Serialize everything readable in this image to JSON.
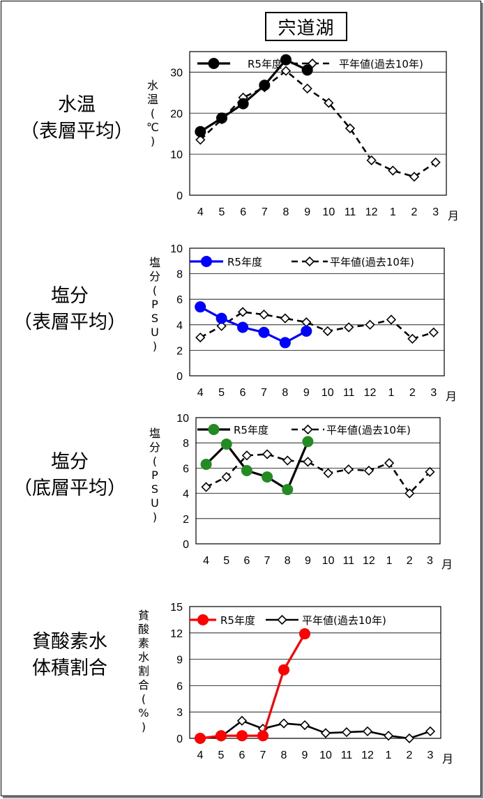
{
  "page": {
    "title": "宍道湖",
    "month_unit": "月"
  },
  "sections": [
    {
      "label_line1": "水温",
      "label_line2": "（表層平均）"
    },
    {
      "label_line1": "塩分",
      "label_line2": "（表層平均）"
    },
    {
      "label_line1": "塩分",
      "label_line2": "（底層平均）"
    },
    {
      "label_line1": "貧酸素水",
      "label_line2": "体積割合"
    }
  ],
  "chart_data": [
    {
      "type": "line",
      "ylabel": "水温(℃)",
      "ylim": [
        0,
        35
      ],
      "yticks": [
        0,
        10,
        20,
        30
      ],
      "grid": true,
      "legend_position": "top",
      "categories": [
        "4",
        "5",
        "6",
        "7",
        "8",
        "9",
        "10",
        "11",
        "12",
        "1",
        "2",
        "3"
      ],
      "series": [
        {
          "name": "R5年度",
          "color": "#000000",
          "marker": "filled-circle",
          "values": [
            15.5,
            18.8,
            22.3,
            26.8,
            33.0,
            30.5,
            null,
            null,
            null,
            null,
            null,
            null
          ]
        },
        {
          "name": "平年値(過去10年)",
          "color": "#000000",
          "marker": "open-diamond",
          "dashed": true,
          "values": [
            13.5,
            18.5,
            23.8,
            26.3,
            30.3,
            26.0,
            22.5,
            16.3,
            8.5,
            6.0,
            4.5,
            8.0
          ]
        }
      ]
    },
    {
      "type": "line",
      "ylabel": "塩分(PSU)",
      "ylim": [
        0,
        10
      ],
      "yticks": [
        0,
        2,
        4,
        6,
        8,
        10
      ],
      "grid": true,
      "legend_position": "top",
      "categories": [
        "4",
        "5",
        "6",
        "7",
        "8",
        "9",
        "10",
        "11",
        "12",
        "1",
        "2",
        "3"
      ],
      "series": [
        {
          "name": "R5年度",
          "color": "#0000ff",
          "line_color": "#0000ff",
          "marker": "filled-circle",
          "values": [
            5.4,
            4.5,
            3.8,
            3.4,
            2.6,
            3.5,
            null,
            null,
            null,
            null,
            null,
            null
          ]
        },
        {
          "name": "平年値(過去10年)",
          "color": "#000000",
          "marker": "open-diamond",
          "dashed": true,
          "values": [
            3.0,
            3.9,
            5.0,
            4.8,
            4.5,
            4.2,
            3.5,
            3.8,
            4.0,
            4.4,
            2.9,
            3.4
          ]
        }
      ]
    },
    {
      "type": "line",
      "ylabel": "塩分(PSU)",
      "ylim": [
        0,
        10
      ],
      "yticks": [
        0,
        2,
        4,
        6,
        8,
        10
      ],
      "grid": true,
      "legend_position": "top",
      "categories": [
        "4",
        "5",
        "6",
        "7",
        "8",
        "9",
        "10",
        "11",
        "12",
        "1",
        "2",
        "3"
      ],
      "series": [
        {
          "name": "R5年度",
          "color": "#228b22",
          "line_color": "#000000",
          "marker": "filled-circle",
          "values": [
            6.3,
            7.9,
            5.8,
            5.3,
            4.3,
            8.1,
            null,
            null,
            null,
            null,
            null,
            null
          ]
        },
        {
          "name": "平年値(過去10年)",
          "color": "#000000",
          "marker": "open-diamond",
          "dashed": true,
          "values": [
            4.5,
            5.3,
            7.0,
            7.1,
            6.6,
            6.5,
            5.6,
            5.9,
            5.8,
            6.4,
            4.0,
            5.7
          ]
        }
      ]
    },
    {
      "type": "line",
      "ylabel": "貧酸素水割合(%)",
      "ylim": [
        0,
        15
      ],
      "yticks": [
        0,
        3,
        6,
        9,
        12,
        15
      ],
      "grid": true,
      "legend_position": "top",
      "categories": [
        "4",
        "5",
        "6",
        "7",
        "8",
        "9",
        "10",
        "11",
        "12",
        "1",
        "2",
        "3"
      ],
      "series": [
        {
          "name": "R5年度",
          "color": "#ff0000",
          "line_color": "#ff0000",
          "marker": "filled-circle",
          "values": [
            0.0,
            0.3,
            0.3,
            0.3,
            7.8,
            11.9,
            null,
            null,
            null,
            null,
            null,
            null
          ]
        },
        {
          "name": "平年値(過去10年)",
          "color": "#000000",
          "marker": "open-diamond",
          "dashed": false,
          "values": [
            0.0,
            0.2,
            2.0,
            1.1,
            1.7,
            1.5,
            0.6,
            0.7,
            0.8,
            0.3,
            0.0,
            0.8
          ]
        }
      ]
    }
  ]
}
